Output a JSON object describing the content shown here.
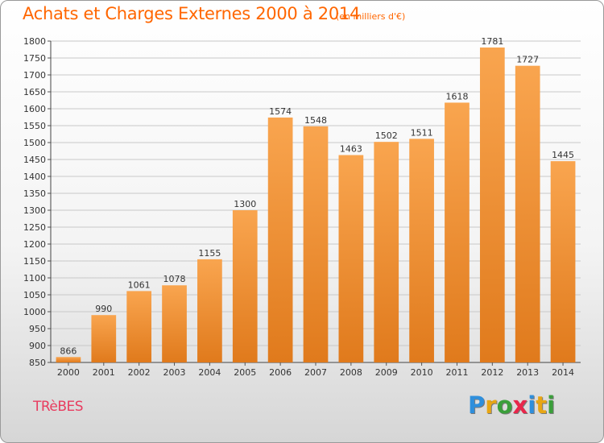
{
  "header": {
    "title": "Achats et Charges Externes 2000 à 2014",
    "subtitle": "(en milliers d'€)"
  },
  "footer": {
    "city": "TRèBES",
    "logo_text": "Proxiti",
    "logo_colors": [
      "#2f8fdc",
      "#e8a614",
      "#3a9f3a",
      "#e8264a",
      "#2f8fdc",
      "#e8a614",
      "#3a9f3a"
    ]
  },
  "colors": {
    "bar_top": "#f9a54f",
    "bar_bottom": "#e07a1c",
    "title": "#ff6600",
    "grid": "#c8c8c8"
  },
  "chart_data": {
    "type": "bar",
    "title": "Achats et Charges Externes 2000 à 2014",
    "subtitle": "(en milliers d'€)",
    "xlabel": "",
    "ylabel": "",
    "categories": [
      "2000",
      "2001",
      "2002",
      "2003",
      "2004",
      "2005",
      "2006",
      "2007",
      "2008",
      "2009",
      "2010",
      "2011",
      "2012",
      "2013",
      "2014"
    ],
    "values": [
      866,
      990,
      1061,
      1078,
      1155,
      1300,
      1574,
      1548,
      1463,
      1502,
      1511,
      1618,
      1781,
      1727,
      1445
    ],
    "ylim": [
      850,
      1800
    ],
    "yticks": [
      850,
      900,
      950,
      1000,
      1050,
      1100,
      1150,
      1200,
      1250,
      1300,
      1350,
      1400,
      1450,
      1500,
      1550,
      1600,
      1650,
      1700,
      1750,
      1800
    ],
    "grid": true,
    "data_labels": true
  }
}
